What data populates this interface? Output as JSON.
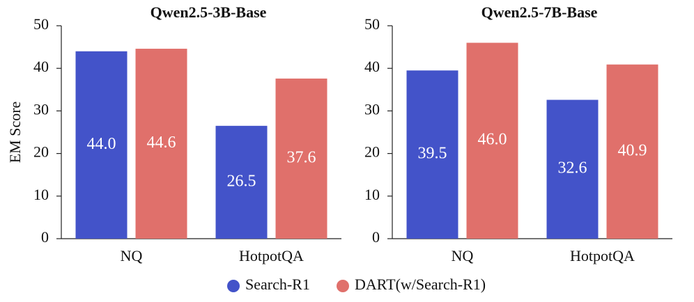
{
  "chart_data": [
    {
      "type": "bar",
      "title": "Qwen2.5-3B-Base",
      "y_label": "EM Score",
      "categories": [
        "NQ",
        "HotpotQA"
      ],
      "series": [
        {
          "name": "Search-R1",
          "color": "#4353c9",
          "values": [
            44.0,
            26.5
          ],
          "value_labels": [
            "44.0",
            "26.5"
          ]
        },
        {
          "name": "DART(w/Search-R1)",
          "color": "#e0706b",
          "values": [
            44.6,
            37.6
          ],
          "value_labels": [
            "44.6",
            "37.6"
          ]
        }
      ],
      "ylim": [
        0,
        50
      ],
      "yticks": [
        0,
        10,
        20,
        30,
        40,
        50
      ]
    },
    {
      "type": "bar",
      "title": "Qwen2.5-7B-Base",
      "categories": [
        "NQ",
        "HotpotQA"
      ],
      "series": [
        {
          "name": "Search-R1",
          "color": "#4353c9",
          "values": [
            39.5,
            32.6
          ],
          "value_labels": [
            "39.5",
            "32.6"
          ]
        },
        {
          "name": "DART(w/Search-R1)",
          "color": "#e0706b",
          "values": [
            46.0,
            40.9
          ],
          "value_labels": [
            "46.0",
            "40.9"
          ]
        }
      ],
      "ylim": [
        0,
        50
      ],
      "yticks": [
        0,
        10,
        20,
        30,
        40,
        50
      ]
    }
  ]
}
